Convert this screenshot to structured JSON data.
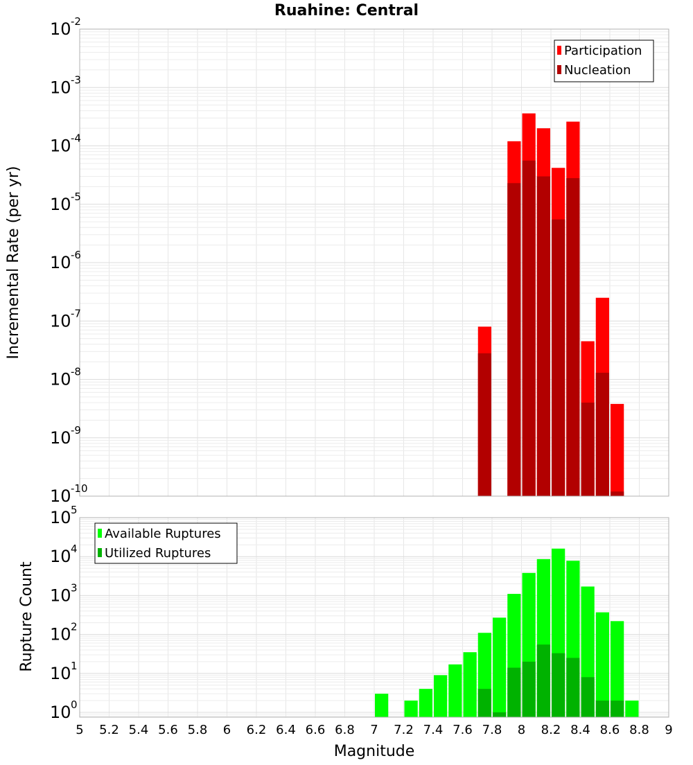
{
  "chart_data": [
    {
      "type": "bar",
      "title": "Ruahine: Central",
      "xlabel": "",
      "ylabel": "Incremental Rate (per yr)",
      "yscale": "log",
      "ylim": [
        1e-10,
        0.01
      ],
      "xlim": [
        5,
        9
      ],
      "bin_width": 0.1,
      "grid": true,
      "legend": {
        "placement": "top-right",
        "entries": [
          "Participation",
          "Nucleation"
        ]
      },
      "series": [
        {
          "name": "Participation",
          "color": "#ff0000",
          "x": [
            7.75,
            7.95,
            8.05,
            8.15,
            8.25,
            8.35,
            8.45,
            8.55,
            8.65
          ],
          "values": [
            8e-08,
            0.00012,
            0.00036,
            0.0002,
            4.2e-05,
            0.00026,
            4.5e-08,
            2.5e-07,
            3.8e-09
          ]
        },
        {
          "name": "Nucleation",
          "color": "#b20000",
          "x": [
            7.75,
            7.95,
            8.05,
            8.15,
            8.25,
            8.35,
            8.45,
            8.55,
            8.65
          ],
          "values": [
            2.8e-08,
            2.3e-05,
            5.6e-05,
            3e-05,
            5.5e-06,
            2.8e-05,
            4e-09,
            1.3e-08,
            1.2e-10
          ]
        }
      ]
    },
    {
      "type": "bar",
      "xlabel": "Magnitude",
      "ylabel": "Rupture Count",
      "yscale": "log",
      "ylim": [
        0.75,
        100000
      ],
      "xlim": [
        5,
        9
      ],
      "bin_width": 0.1,
      "grid": true,
      "legend": {
        "placement": "top-left",
        "entries": [
          "Available Ruptures",
          "Utilized Ruptures"
        ]
      },
      "series": [
        {
          "name": "Available Ruptures",
          "color": "#00ff00",
          "x": [
            7.05,
            7.25,
            7.35,
            7.45,
            7.55,
            7.65,
            7.75,
            7.85,
            7.95,
            8.05,
            8.15,
            8.25,
            8.35,
            8.45,
            8.55,
            8.65,
            8.75
          ],
          "values": [
            3,
            2,
            4,
            9,
            17,
            35,
            110,
            270,
            1100,
            3800,
            8600,
            16000,
            7800,
            1700,
            370,
            220,
            2
          ]
        },
        {
          "name": "Utilized Ruptures",
          "color": "#00b200",
          "x": [
            7.75,
            7.85,
            7.95,
            8.05,
            8.15,
            8.25,
            8.35,
            8.45,
            8.55,
            8.65
          ],
          "values": [
            4,
            1,
            14,
            20,
            55,
            33,
            25,
            8,
            2,
            2
          ]
        }
      ]
    }
  ],
  "axes": {
    "x_ticks": [
      "5",
      "5.2",
      "5.4",
      "5.6",
      "5.8",
      "6",
      "6.2",
      "6.4",
      "6.6",
      "6.8",
      "7",
      "7.2",
      "7.4",
      "7.6",
      "7.8",
      "8",
      "8.2",
      "8.4",
      "8.6",
      "8.8",
      "9"
    ],
    "top_y_tick_exponents": [
      "-2",
      "-3",
      "-4",
      "-5",
      "-6",
      "-7",
      "-8",
      "-9",
      "-10"
    ],
    "bottom_y_tick_exponents": [
      "5",
      "4",
      "3",
      "2",
      "1",
      "0"
    ],
    "y_tick_base": "10"
  }
}
